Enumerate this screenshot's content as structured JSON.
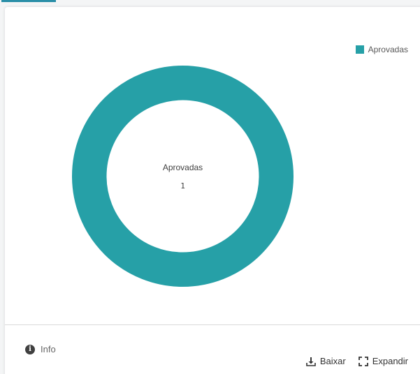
{
  "legend": {
    "label": "Aprovadas",
    "color": "#26a0a7"
  },
  "chart_data": {
    "type": "pie",
    "variant": "donut",
    "categories": [
      "Aprovadas"
    ],
    "values": [
      1
    ],
    "center_label": "Aprovadas",
    "center_value": "1",
    "legend_position": "top-right",
    "colors": [
      "#26a0a7"
    ]
  },
  "footer": {
    "info_label": "Info",
    "download_label": "Baixar",
    "expand_label": "Expandir",
    "info_icon": "info-circle-icon",
    "download_icon": "download-icon",
    "expand_icon": "expand-icon"
  }
}
